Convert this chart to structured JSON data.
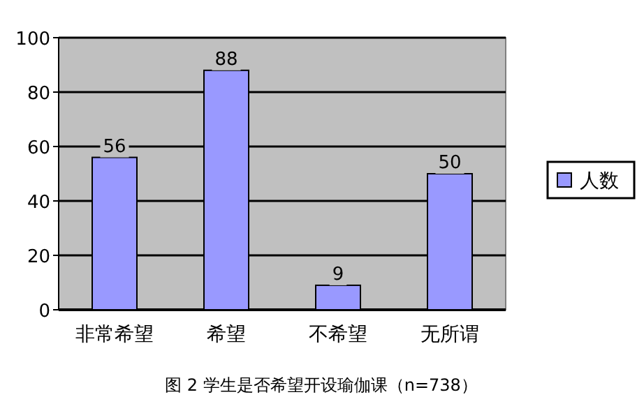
{
  "chart_data": {
    "type": "bar",
    "categories": [
      "非常希望",
      "希望",
      "不希望",
      "无所谓"
    ],
    "series": [
      {
        "name": "人数",
        "color": "#9999ff",
        "values": [
          56,
          88,
          9,
          50
        ]
      }
    ],
    "ylim": [
      0,
      100
    ],
    "yticks": [
      0,
      20,
      40,
      60,
      80,
      100
    ],
    "grid": "y",
    "legend": "right",
    "data_labels": true,
    "annotations": [
      "图 2 学生是否希望开设瑜伽课（n=738）"
    ]
  }
}
